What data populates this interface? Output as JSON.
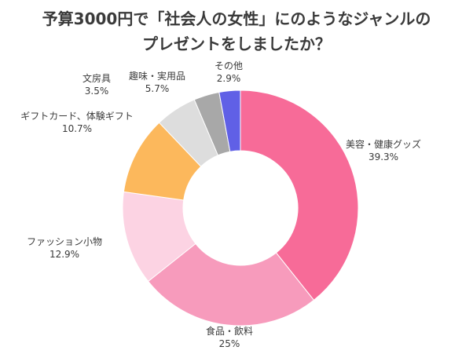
{
  "title_line1": "予算3000円で「社会人の女性」にのようなジャンルの",
  "title_line2": "プレゼントをしましたか？",
  "chart_data": {
    "type": "pie",
    "title": "予算3000円で「社会人の女性」にのようなジャンルのプレゼントをしましたか？",
    "donut": true,
    "start": "top, clockwise",
    "slices": [
      {
        "label": "美容・健康グッズ",
        "value": 39.3,
        "value_label": "39.3%",
        "color": "#f76b98"
      },
      {
        "label": "食品・飲料",
        "value": 25,
        "value_label": "25%",
        "color": "#f79bbc"
      },
      {
        "label": "ファッション小物",
        "value": 12.9,
        "value_label": "12.9%",
        "color": "#fcd3e3"
      },
      {
        "label": "ギフトカード、体験ギフト",
        "value": 10.7,
        "value_label": "10.7%",
        "color": "#fcb85c"
      },
      {
        "label": "趣味・実用品",
        "value": 5.7,
        "value_label": "5.7%",
        "color": "#dddddd"
      },
      {
        "label": "文房具",
        "value": 3.5,
        "value_label": "3.5%",
        "color": "#a8a8a8"
      },
      {
        "label": "その他",
        "value": 2.9,
        "value_label": "2.9%",
        "color": "#6060e6"
      }
    ]
  }
}
